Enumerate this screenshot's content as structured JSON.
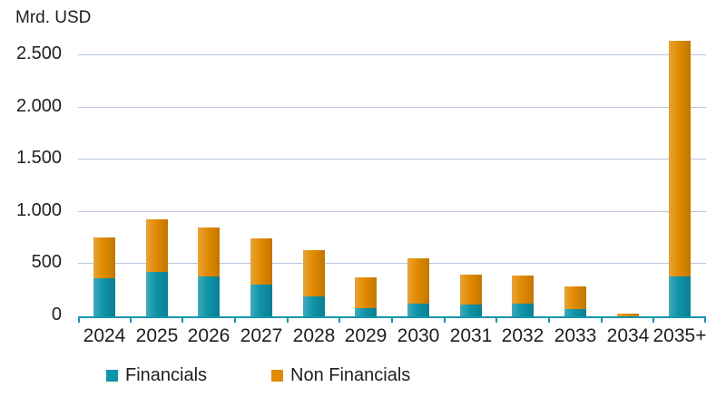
{
  "chart_data": {
    "type": "bar",
    "stacked": true,
    "ylabel": "Mrd. USD",
    "xlabel": "",
    "categories": [
      "2024",
      "2025",
      "2026",
      "2027",
      "2028",
      "2029",
      "2030",
      "2031",
      "2032",
      "2033",
      "2034",
      "2035+"
    ],
    "series": [
      {
        "name": "Financials",
        "color": "#0E93A8",
        "values": [
          380,
          445,
          400,
          315,
          210,
          95,
          140,
          130,
          140,
          90,
          5,
          400
        ]
      },
      {
        "name": "Non Financials",
        "color": "#E18A00",
        "values": [
          390,
          500,
          470,
          445,
          440,
          295,
          435,
          290,
          270,
          215,
          40,
          2260
        ]
      }
    ],
    "totals": [
      770,
      945,
      870,
      760,
      650,
      390,
      575,
      420,
      410,
      305,
      45,
      2660
    ],
    "yticks": [
      {
        "v": 0,
        "label": "0"
      },
      {
        "v": 500,
        "label": "500"
      },
      {
        "v": 1000,
        "label": "1.000"
      },
      {
        "v": 1500,
        "label": "1.500"
      },
      {
        "v": 2000,
        "label": "2.000"
      },
      {
        "v": 2500,
        "label": "2.500"
      }
    ],
    "ylim": [
      0,
      2750
    ],
    "grid": true,
    "legend_position": "bottom",
    "colors": {
      "financials": "#0E93A8",
      "non_financials": "#E18A00",
      "axis": "#1796AC",
      "gridline": "#B6C8DC",
      "text": "#202020"
    }
  }
}
